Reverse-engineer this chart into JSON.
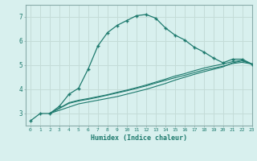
{
  "xlabel": "Humidex (Indice chaleur)",
  "xlim": [
    -0.5,
    23
  ],
  "ylim": [
    2.5,
    7.5
  ],
  "background_color": "#d8f0ee",
  "grid_color": "#c4dcd8",
  "line_color": "#1e7a6e",
  "xticks": [
    0,
    1,
    2,
    3,
    4,
    5,
    6,
    7,
    8,
    9,
    10,
    11,
    12,
    13,
    14,
    15,
    16,
    17,
    18,
    19,
    20,
    21,
    22,
    23
  ],
  "yticks": [
    3,
    4,
    5,
    6,
    7
  ],
  "curve1_x": [
    0,
    1,
    2,
    3,
    4,
    5,
    6,
    7,
    8,
    9,
    10,
    11,
    12,
    13,
    14,
    15,
    16,
    17,
    18,
    19,
    20,
    21,
    22,
    23
  ],
  "curve1_y": [
    2.7,
    3.0,
    3.0,
    3.3,
    3.8,
    4.05,
    4.85,
    5.8,
    6.35,
    6.65,
    6.85,
    7.05,
    7.1,
    6.95,
    6.55,
    6.25,
    6.05,
    5.75,
    5.55,
    5.3,
    5.1,
    5.25,
    5.25,
    5.05
  ],
  "curve2_x": [
    2,
    4,
    5,
    6,
    7,
    8,
    9,
    10,
    11,
    12,
    13,
    14,
    15,
    16,
    17,
    18,
    19,
    20,
    21,
    22,
    23
  ],
  "curve2_y": [
    3.0,
    3.45,
    3.55,
    3.62,
    3.7,
    3.78,
    3.88,
    3.97,
    4.07,
    4.18,
    4.3,
    4.42,
    4.55,
    4.65,
    4.77,
    4.88,
    4.97,
    5.05,
    5.15,
    5.2,
    5.05
  ],
  "curve3_x": [
    2,
    4,
    5,
    6,
    7,
    8,
    9,
    10,
    11,
    12,
    13,
    14,
    15,
    16,
    17,
    18,
    19,
    20,
    21,
    22,
    23
  ],
  "curve3_y": [
    3.0,
    3.42,
    3.52,
    3.59,
    3.67,
    3.76,
    3.85,
    3.94,
    4.04,
    4.14,
    4.26,
    4.37,
    4.48,
    4.58,
    4.69,
    4.8,
    4.88,
    4.96,
    5.07,
    5.12,
    5.05
  ],
  "curve4_x": [
    2,
    5,
    7,
    9,
    10,
    11,
    12,
    13,
    14,
    15,
    16,
    17,
    18,
    19,
    20,
    21,
    22,
    23
  ],
  "curve4_y": [
    3.0,
    3.4,
    3.55,
    3.7,
    3.8,
    3.9,
    4.0,
    4.12,
    4.24,
    4.38,
    4.5,
    4.62,
    4.73,
    4.83,
    4.93,
    5.1,
    5.18,
    5.05
  ]
}
